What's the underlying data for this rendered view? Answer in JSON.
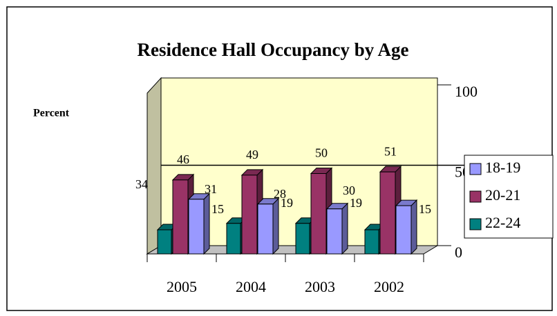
{
  "chart_data": {
    "type": "bar3d",
    "title": "Residence Hall Occupancy by Age",
    "y_label": "Percent",
    "categories": [
      "2005",
      "2004",
      "2003",
      "2002"
    ],
    "series": [
      {
        "name": "18-19",
        "color": "#9999ff",
        "values": [
          34,
          31,
          28,
          30
        ]
      },
      {
        "name": "20-21",
        "color": "#993366",
        "values": [
          46,
          49,
          50,
          51
        ]
      },
      {
        "name": "22-24",
        "color": "#008080",
        "values": [
          15,
          19,
          19,
          15
        ]
      }
    ],
    "ylim": [
      0,
      100
    ],
    "yticks": [
      0,
      50,
      100
    ],
    "grid": true,
    "legend": "right"
  }
}
